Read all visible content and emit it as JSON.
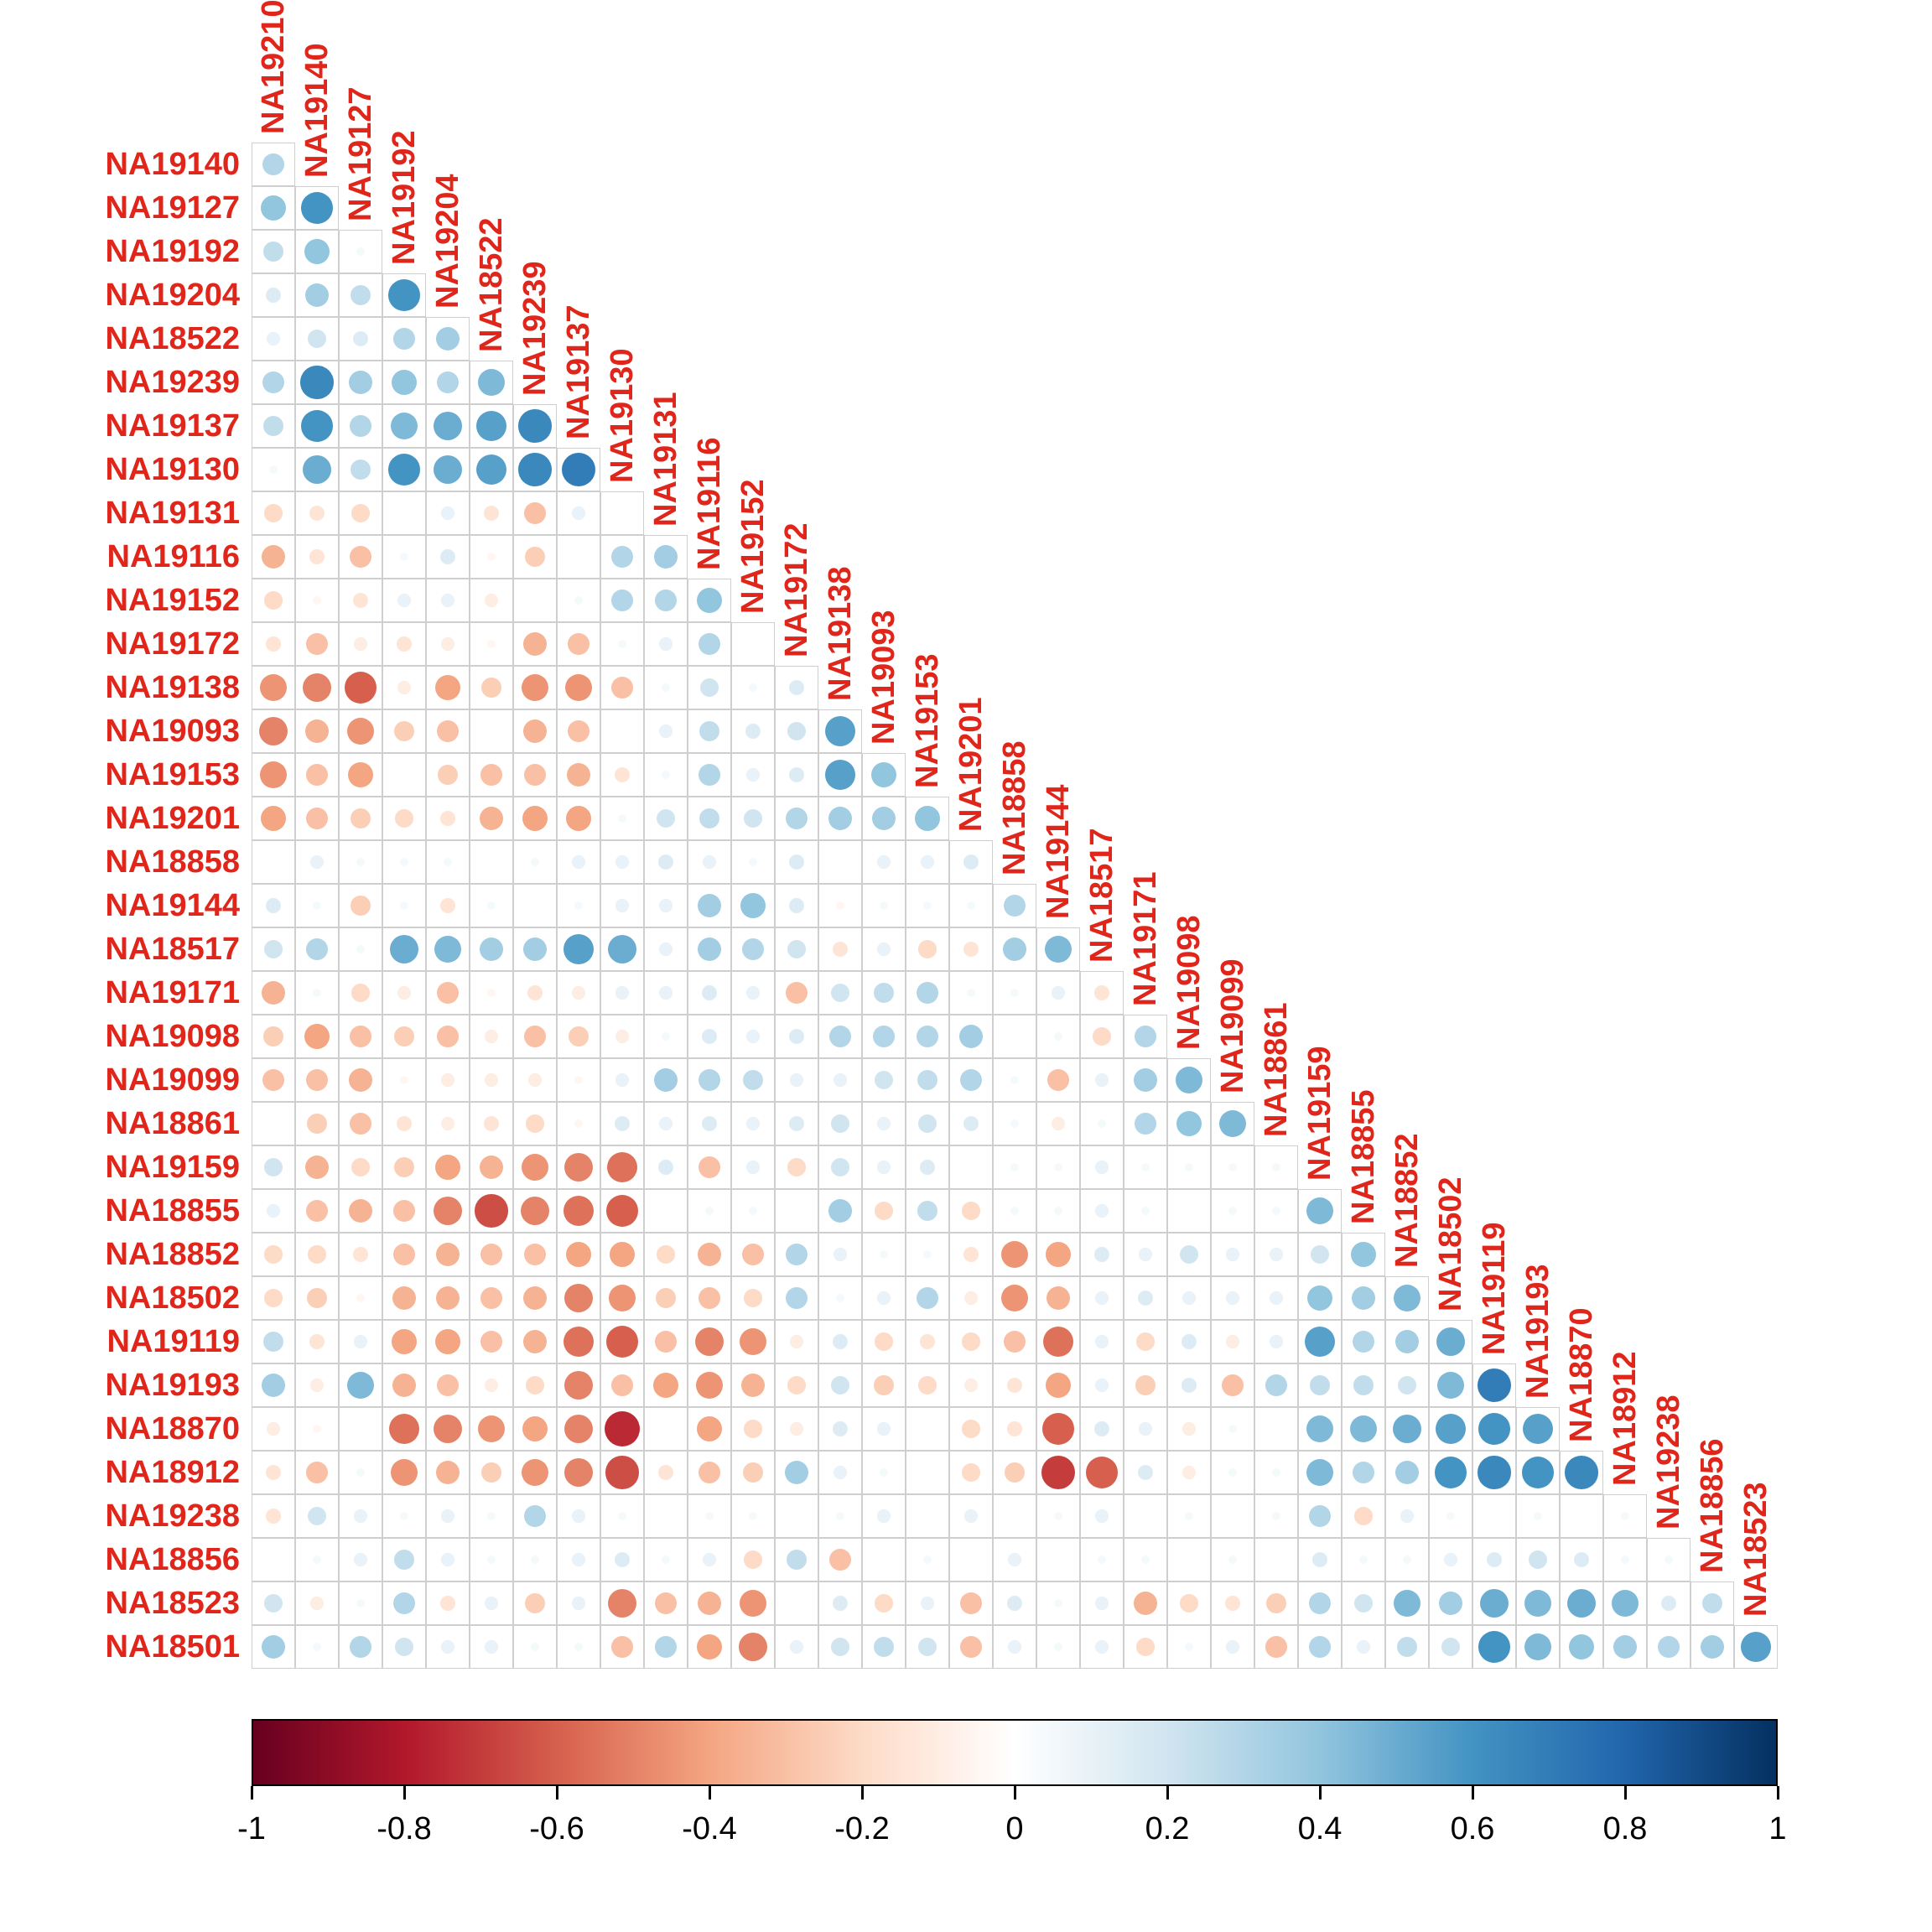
{
  "chart_data": {
    "type": "heatmap",
    "variant": "correlogram-circles-lower-triangle",
    "samples": [
      "NA19210",
      "NA19140",
      "NA19127",
      "NA19192",
      "NA19204",
      "NA18522",
      "NA19239",
      "NA19137",
      "NA19130",
      "NA19131",
      "NA19116",
      "NA19152",
      "NA19172",
      "NA19138",
      "NA19093",
      "NA19153",
      "NA19201",
      "NA18858",
      "NA19144",
      "NA18517",
      "NA19171",
      "NA19098",
      "NA19099",
      "NA18861",
      "NA19159",
      "NA18855",
      "NA18852",
      "NA18502",
      "NA19119",
      "NA19193",
      "NA18870",
      "NA18912",
      "NA19238",
      "NA18856",
      "NA18523",
      "NA18501"
    ],
    "col_labels": [
      "NA19210",
      "NA19140",
      "NA19127",
      "NA19192",
      "NA19204",
      "NA18522",
      "NA19239",
      "NA19137",
      "NA19130",
      "NA19131",
      "NA19116",
      "NA19152",
      "NA19172",
      "NA19138",
      "NA19093",
      "NA19153",
      "NA19201",
      "NA18858",
      "NA19144",
      "NA18517",
      "NA19171",
      "NA19098",
      "NA19099",
      "NA18861",
      "NA19159",
      "NA18855",
      "NA18852",
      "NA18502",
      "NA19119",
      "NA19193",
      "NA18870",
      "NA18912",
      "NA19238",
      "NA18856",
      "NA18523"
    ],
    "row_labels": [
      "NA19140",
      "NA19127",
      "NA19192",
      "NA19204",
      "NA18522",
      "NA19239",
      "NA19137",
      "NA19130",
      "NA19131",
      "NA19116",
      "NA19152",
      "NA19172",
      "NA19138",
      "NA19093",
      "NA19153",
      "NA19201",
      "NA18858",
      "NA19144",
      "NA18517",
      "NA19171",
      "NA19098",
      "NA19099",
      "NA18861",
      "NA19159",
      "NA18855",
      "NA18852",
      "NA18502",
      "NA19119",
      "NA19193",
      "NA18870",
      "NA18912",
      "NA19238",
      "NA18856",
      "NA18523",
      "NA18501"
    ],
    "value_range": [
      -1,
      1
    ],
    "matrix": [
      [
        0.3
      ],
      [
        0.4,
        0.6
      ],
      [
        0.25,
        0.4,
        0.05
      ],
      [
        0.15,
        0.35,
        0.25,
        0.6
      ],
      [
        0.1,
        0.2,
        0.15,
        0.3,
        0.35
      ],
      [
        0.3,
        0.65,
        0.35,
        0.4,
        0.3,
        0.45
      ],
      [
        0.25,
        0.6,
        0.3,
        0.45,
        0.5,
        0.55,
        0.65
      ],
      [
        0.05,
        0.5,
        0.25,
        0.6,
        0.5,
        0.55,
        0.65,
        0.7
      ],
      [
        -0.2,
        -0.15,
        -0.2,
        0,
        0.1,
        -0.15,
        -0.3,
        0.1,
        0
      ],
      [
        -0.35,
        -0.15,
        -0.3,
        0.05,
        0.15,
        -0.05,
        -0.25,
        0,
        0.3,
        0.35
      ],
      [
        -0.2,
        -0.05,
        -0.15,
        0.1,
        0.1,
        -0.1,
        0,
        0.05,
        0.3,
        0.3,
        0.4
      ],
      [
        -0.15,
        -0.3,
        -0.1,
        -0.15,
        -0.1,
        -0.05,
        -0.35,
        -0.3,
        0.05,
        0.1,
        0.3,
        0
      ],
      [
        -0.45,
        -0.5,
        -0.6,
        -0.1,
        -0.4,
        -0.25,
        -0.45,
        -0.45,
        -0.3,
        0.05,
        0.2,
        0.05,
        0.15
      ],
      [
        -0.5,
        -0.35,
        -0.45,
        -0.25,
        -0.3,
        0,
        -0.35,
        -0.3,
        0,
        0.1,
        0.25,
        0.15,
        0.2,
        0.55
      ],
      [
        -0.45,
        -0.3,
        -0.4,
        0,
        -0.25,
        -0.3,
        -0.3,
        -0.35,
        -0.15,
        0.05,
        0.3,
        0.1,
        0.15,
        0.55,
        0.4
      ],
      [
        -0.4,
        -0.3,
        -0.25,
        -0.2,
        -0.15,
        -0.35,
        -0.4,
        -0.4,
        0.05,
        0.2,
        0.25,
        0.2,
        0.3,
        0.35,
        0.35,
        0.4
      ],
      [
        0,
        0.1,
        0.05,
        0.05,
        0.05,
        0,
        0.05,
        0.1,
        0.1,
        0.15,
        0.1,
        0.05,
        0.15,
        0,
        0.1,
        0.1,
        0.15
      ],
      [
        0.15,
        0.05,
        -0.25,
        0.05,
        -0.15,
        0.05,
        0,
        0.05,
        0.1,
        0.1,
        0.35,
        0.4,
        0.15,
        -0.05,
        0.05,
        0.05,
        0.05,
        0.3
      ],
      [
        0.2,
        0.3,
        0.05,
        0.5,
        0.45,
        0.35,
        0.35,
        0.55,
        0.5,
        0.1,
        0.35,
        0.3,
        0.2,
        -0.15,
        0.1,
        -0.2,
        -0.15,
        0.35,
        0.45
      ],
      [
        -0.35,
        0.05,
        -0.2,
        -0.1,
        -0.3,
        -0.05,
        -0.15,
        -0.1,
        0.1,
        0.1,
        0.15,
        0.1,
        -0.3,
        0.2,
        0.25,
        0.3,
        0.05,
        0.05,
        0.1,
        -0.15
      ],
      [
        -0.25,
        -0.4,
        -0.3,
        -0.25,
        -0.3,
        -0.1,
        -0.3,
        -0.25,
        -0.1,
        0.05,
        0.15,
        0.1,
        0.15,
        0.3,
        0.3,
        0.3,
        0.35,
        0,
        0.05,
        -0.2,
        0.3
      ],
      [
        -0.3,
        -0.3,
        -0.35,
        -0.05,
        -0.1,
        -0.1,
        -0.1,
        -0.05,
        0.1,
        0.35,
        0.3,
        0.25,
        0.1,
        0.1,
        0.2,
        0.25,
        0.3,
        0.05,
        -0.3,
        0.1,
        0.35,
        0.45
      ],
      [
        0,
        -0.25,
        -0.3,
        -0.15,
        -0.1,
        -0.15,
        -0.2,
        -0.05,
        0.15,
        0.1,
        0.15,
        0.1,
        0.15,
        0.2,
        0.1,
        0.2,
        0.15,
        0.05,
        -0.1,
        0.05,
        0.3,
        0.4,
        0.45
      ],
      [
        0.2,
        -0.35,
        -0.2,
        -0.25,
        -0.4,
        -0.35,
        -0.45,
        -0.5,
        -0.55,
        0.15,
        -0.3,
        0.1,
        -0.2,
        0.2,
        0.1,
        0.15,
        0,
        0.05,
        0.05,
        0.1,
        0.05,
        0.05,
        0.05,
        0.05
      ],
      [
        0.1,
        -0.3,
        -0.35,
        -0.3,
        -0.5,
        -0.65,
        -0.5,
        -0.55,
        -0.6,
        0,
        0.05,
        0.05,
        0,
        0.35,
        -0.2,
        0.25,
        -0.2,
        0.05,
        0.05,
        0.1,
        0.05,
        0,
        0.05,
        0.05,
        0.45
      ],
      [
        -0.2,
        -0.2,
        -0.15,
        -0.3,
        -0.35,
        -0.3,
        -0.3,
        -0.4,
        -0.4,
        -0.2,
        -0.35,
        -0.3,
        0.3,
        0.1,
        0.05,
        0.05,
        -0.15,
        -0.45,
        -0.4,
        0.15,
        0.1,
        0.2,
        0.1,
        0.1,
        0.2,
        0.4
      ],
      [
        -0.2,
        -0.25,
        -0.05,
        -0.35,
        -0.35,
        -0.3,
        -0.35,
        -0.5,
        -0.45,
        -0.25,
        -0.3,
        -0.2,
        0.3,
        0.05,
        0.1,
        0.3,
        -0.1,
        -0.45,
        -0.35,
        0.1,
        0.15,
        0.1,
        0.1,
        0.1,
        0.4,
        0.35,
        0.45
      ],
      [
        0.25,
        -0.15,
        0.1,
        -0.4,
        -0.4,
        -0.3,
        -0.35,
        -0.55,
        -0.6,
        -0.3,
        -0.5,
        -0.45,
        -0.1,
        0.15,
        -0.2,
        -0.15,
        -0.2,
        -0.3,
        -0.55,
        0.1,
        -0.2,
        0.15,
        -0.1,
        0.1,
        0.55,
        0.3,
        0.35,
        0.5
      ],
      [
        0.35,
        -0.1,
        0.45,
        -0.35,
        -0.3,
        -0.1,
        -0.2,
        -0.5,
        -0.3,
        -0.4,
        -0.45,
        -0.35,
        -0.2,
        0.2,
        -0.25,
        -0.2,
        -0.1,
        -0.15,
        -0.4,
        0.1,
        -0.25,
        0.15,
        -0.3,
        0.3,
        0.25,
        0.25,
        0.2,
        0.45,
        0.7
      ],
      [
        -0.1,
        -0.05,
        0,
        -0.55,
        -0.5,
        -0.45,
        -0.4,
        -0.5,
        -0.75,
        0,
        -0.4,
        -0.2,
        -0.1,
        0.15,
        0.1,
        0,
        -0.2,
        -0.15,
        -0.6,
        0.15,
        0.1,
        -0.1,
        0.05,
        0,
        0.45,
        0.45,
        0.5,
        0.55,
        0.6,
        0.55
      ],
      [
        -0.15,
        -0.3,
        0.05,
        -0.45,
        -0.35,
        -0.25,
        -0.45,
        -0.5,
        -0.65,
        -0.15,
        -0.3,
        -0.25,
        0.35,
        0.1,
        0.05,
        0,
        -0.2,
        -0.25,
        -0.7,
        -0.6,
        0.15,
        -0.1,
        0.05,
        0.05,
        0.45,
        0.3,
        0.35,
        0.6,
        0.65,
        0.6,
        0.65
      ],
      [
        -0.15,
        0.2,
        0.1,
        0.05,
        0.1,
        0.05,
        0.3,
        0.1,
        0.05,
        0,
        0.05,
        0.05,
        0,
        0.05,
        0.1,
        0,
        0.1,
        0,
        0.05,
        0.1,
        0,
        0.05,
        0,
        0.05,
        0.3,
        -0.2,
        0.1,
        0.05,
        0,
        0.05,
        0,
        0.05
      ],
      [
        0,
        0.05,
        0.1,
        0.25,
        0.1,
        0.05,
        0.05,
        0.1,
        0.15,
        0.05,
        0.1,
        -0.2,
        0.25,
        -0.3,
        0,
        0.05,
        0,
        0.1,
        0,
        0.05,
        0.05,
        0,
        0.05,
        0,
        0.15,
        0.05,
        0.05,
        0.1,
        0.15,
        0.2,
        0.15,
        0.05,
        0.05
      ],
      [
        0.2,
        -0.1,
        0.05,
        0.3,
        -0.15,
        0.1,
        -0.25,
        0.1,
        -0.5,
        -0.3,
        -0.35,
        -0.45,
        0,
        0.15,
        -0.2,
        0.1,
        -0.3,
        0.15,
        0.05,
        0.1,
        -0.35,
        -0.2,
        -0.15,
        -0.25,
        0.3,
        0.2,
        0.45,
        0.35,
        0.5,
        0.45,
        0.5,
        0.45,
        0.15,
        0.25
      ],
      [
        0.35,
        0.05,
        0.3,
        0.2,
        0.1,
        0.1,
        0.05,
        0.05,
        -0.3,
        0.3,
        -0.4,
        -0.5,
        0.1,
        0.2,
        0.25,
        0.2,
        -0.3,
        0.1,
        0.05,
        0.1,
        -0.2,
        0.05,
        0.1,
        -0.3,
        0.3,
        0.1,
        0.25,
        0.2,
        0.6,
        0.45,
        0.4,
        0.35,
        0.3,
        0.35,
        0.55
      ]
    ],
    "colorbar": {
      "min": -1,
      "max": 1,
      "ticks": [
        "-1",
        "-0.8",
        "-0.6",
        "-0.4",
        "-0.2",
        "0",
        "0.2",
        "0.4",
        "0.6",
        "0.8",
        "1"
      ],
      "palette": [
        "#67001F",
        "#B2182B",
        "#D6604D",
        "#F4A582",
        "#FDDBC7",
        "#FFFFFF",
        "#D1E5F0",
        "#92C5DE",
        "#4393C3",
        "#2166AC",
        "#053061"
      ]
    },
    "style": {
      "label_color": "#e0251a",
      "grid_color": "#cfcfcf",
      "tick_label_color": "#000000",
      "background": "#ffffff"
    }
  }
}
